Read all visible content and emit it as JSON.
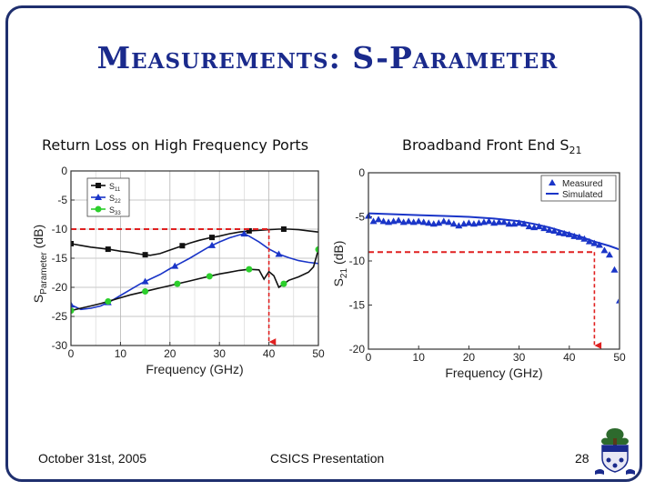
{
  "slide": {
    "title": "Measurements: S-Parameter",
    "left_subtitle": "Return Loss on High Frequency Ports",
    "right_subtitle_main": "Broadband Front End S",
    "right_subtitle_sub": "21",
    "footer_date": "October 31st, 2005",
    "footer_center": "CSICS Presentation",
    "footer_page": "28"
  },
  "chart_data": [
    {
      "type": "line",
      "title": "Return Loss on High Frequency Ports",
      "xlabel": "Frequency (GHz)",
      "ylabel": "S_Parameter (dB)",
      "xlim": [
        0,
        50
      ],
      "ylim": [
        -30,
        0
      ],
      "xticks": [
        0,
        10,
        20,
        30,
        40,
        50
      ],
      "yticks": [
        0,
        -5,
        -10,
        -15,
        -20,
        -25,
        -30
      ],
      "grid": true,
      "legend_position": "top-left",
      "series": [
        {
          "name": "S11",
          "name_main": "S",
          "name_sub": "11",
          "color": "#111111",
          "marker": "square",
          "x": [
            0,
            2,
            4,
            6,
            8,
            10,
            12,
            14,
            16,
            18,
            20,
            22,
            24,
            26,
            28,
            30,
            32,
            34,
            36,
            38,
            40,
            42,
            44,
            46,
            48,
            50
          ],
          "y": [
            -12.5,
            -12.8,
            -13.1,
            -13.3,
            -13.5,
            -13.8,
            -14.0,
            -14.3,
            -14.5,
            -14.2,
            -13.6,
            -13.0,
            -12.4,
            -11.9,
            -11.5,
            -11.2,
            -10.8,
            -10.5,
            -10.3,
            -10.2,
            -10.1,
            -10.0,
            -10.0,
            -10.1,
            -10.3,
            -10.5
          ],
          "marker_x": [
            0,
            7.5,
            15,
            22.5,
            28.5,
            36,
            43
          ]
        },
        {
          "name": "S22",
          "name_main": "S",
          "name_sub": "22",
          "color": "#1a35c8",
          "marker": "triangle",
          "x": [
            0,
            2,
            4,
            6,
            8,
            10,
            12,
            14,
            16,
            18,
            20,
            22,
            24,
            26,
            28,
            30,
            32,
            34,
            35,
            36,
            38,
            40,
            42,
            44,
            46,
            48,
            50
          ],
          "y": [
            -23.0,
            -23.8,
            -23.6,
            -23.2,
            -22.4,
            -21.4,
            -20.4,
            -19.4,
            -18.6,
            -17.8,
            -16.8,
            -15.9,
            -15.0,
            -14.0,
            -13.0,
            -12.2,
            -11.5,
            -11.0,
            -10.8,
            -11.2,
            -12.2,
            -13.4,
            -14.3,
            -14.9,
            -15.4,
            -15.7,
            -15.9
          ],
          "marker_x": [
            0,
            7.5,
            15,
            21,
            28.5,
            35,
            42
          ]
        },
        {
          "name": "S33",
          "name_main": "S",
          "name_sub": "33",
          "color": "#2ccf2c",
          "line_color": "#111111",
          "marker": "circle",
          "x": [
            0,
            2,
            4,
            6,
            8,
            10,
            12,
            14,
            16,
            18,
            20,
            22,
            24,
            26,
            28,
            30,
            32,
            34,
            36,
            38,
            39,
            40,
            41,
            42,
            43,
            44,
            46,
            48,
            49,
            50
          ],
          "y": [
            -24.0,
            -23.6,
            -23.2,
            -22.8,
            -22.3,
            -21.8,
            -21.3,
            -20.9,
            -20.5,
            -20.1,
            -19.7,
            -19.3,
            -18.9,
            -18.5,
            -18.1,
            -17.7,
            -17.4,
            -17.1,
            -16.9,
            -17.0,
            -18.6,
            -17.3,
            -18.0,
            -20.0,
            -19.4,
            -18.8,
            -18.2,
            -17.4,
            -16.5,
            -13.5
          ],
          "marker_x": [
            0,
            7.5,
            15,
            21.5,
            28,
            36,
            43,
            50
          ]
        }
      ],
      "annotations": [
        {
          "type": "hline",
          "y": -10,
          "x_from": 0,
          "x_to": 40,
          "color": "#e02020",
          "style": "dashed"
        },
        {
          "type": "vline",
          "x": 40,
          "y_from": -10,
          "y_to": -30,
          "color": "#e02020",
          "style": "dashed-arrow"
        }
      ]
    },
    {
      "type": "line",
      "title": "Broadband Front End S21",
      "xlabel": "Frequency (GHz)",
      "ylabel": "S21 (dB)",
      "xlim": [
        0,
        50
      ],
      "ylim": [
        -20,
        0
      ],
      "xticks": [
        0,
        10,
        20,
        30,
        40,
        50
      ],
      "yticks": [
        0,
        -5,
        -10,
        -15,
        -20
      ],
      "grid": false,
      "legend_position": "top-right",
      "series": [
        {
          "name": "Measured",
          "color": "#1a35c8",
          "marker": "triangle",
          "style": "markers",
          "x": [
            0,
            1,
            2,
            3,
            4,
            5,
            6,
            7,
            8,
            9,
            10,
            11,
            12,
            13,
            14,
            15,
            16,
            17,
            18,
            19,
            20,
            21,
            22,
            23,
            24,
            25,
            26,
            27,
            28,
            29,
            30,
            31,
            32,
            33,
            34,
            35,
            36,
            37,
            38,
            39,
            40,
            41,
            42,
            43,
            44,
            45,
            46,
            47,
            48,
            49,
            50
          ],
          "y": [
            -4.9,
            -5.5,
            -5.3,
            -5.5,
            -5.6,
            -5.5,
            -5.4,
            -5.6,
            -5.5,
            -5.6,
            -5.5,
            -5.6,
            -5.7,
            -5.8,
            -5.7,
            -5.5,
            -5.6,
            -5.8,
            -6.0,
            -5.8,
            -5.7,
            -5.8,
            -5.7,
            -5.6,
            -5.5,
            -5.7,
            -5.6,
            -5.6,
            -5.8,
            -5.8,
            -5.7,
            -5.8,
            -6.1,
            -6.2,
            -6.1,
            -6.3,
            -6.5,
            -6.6,
            -6.8,
            -6.9,
            -7.0,
            -7.2,
            -7.3,
            -7.5,
            -7.8,
            -8.0,
            -8.2,
            -8.8,
            -9.3,
            -11.0,
            -14.5
          ]
        },
        {
          "name": "Simulated",
          "color": "#1a35c8",
          "marker": "none",
          "style": "line",
          "x": [
            0,
            5,
            10,
            15,
            20,
            25,
            30,
            33,
            36,
            39,
            42,
            45,
            48,
            50
          ],
          "y": [
            -4.6,
            -4.7,
            -4.8,
            -4.9,
            -5.0,
            -5.2,
            -5.5,
            -5.8,
            -6.2,
            -6.7,
            -7.2,
            -7.8,
            -8.3,
            -8.7
          ]
        }
      ],
      "annotations": [
        {
          "type": "hline",
          "y": -9,
          "x_from": 0,
          "x_to": 45,
          "color": "#e02020",
          "style": "dashed"
        },
        {
          "type": "vline",
          "x": 45,
          "y_from": -9,
          "y_to": -20,
          "color": "#e02020",
          "style": "dashed-arrow"
        }
      ]
    }
  ]
}
